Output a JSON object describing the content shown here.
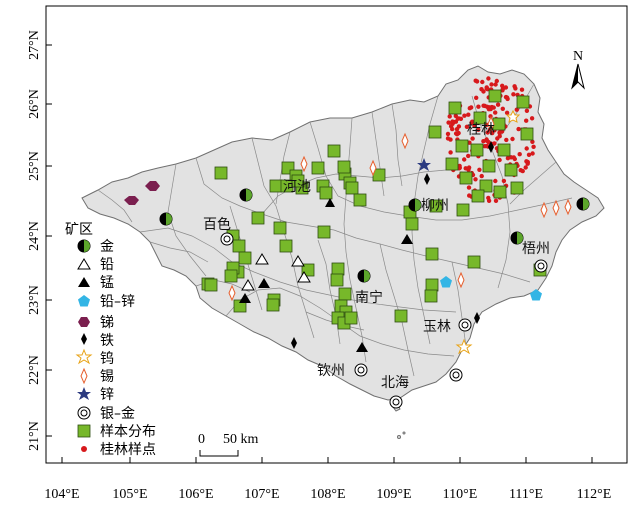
{
  "axes": {
    "x_ticks": [
      "104°E",
      "105°E",
      "106°E",
      "107°E",
      "108°E",
      "109°E",
      "110°E",
      "111°E",
      "112°E"
    ],
    "y_ticks": [
      "27°N",
      "26°N",
      "25°N",
      "24°N",
      "23°N",
      "22°N",
      "21°N"
    ]
  },
  "north_arrow": {
    "label": "N"
  },
  "cities": [
    "桂林",
    "河池",
    "柳州",
    "百色",
    "梧州",
    "南宁",
    "玉林",
    "钦州",
    "北海"
  ],
  "legend": {
    "title": "矿区",
    "items": [
      {
        "label": "金",
        "symbol": "half-circle"
      },
      {
        "label": "铅",
        "symbol": "open-triangle"
      },
      {
        "label": "锰",
        "symbol": "filled-triangle"
      },
      {
        "label": "铅–锌",
        "symbol": "pentagon"
      },
      {
        "label": "锑",
        "symbol": "hexagon"
      },
      {
        "label": "铁",
        "symbol": "filled-diamond"
      },
      {
        "label": "钨",
        "symbol": "open-star"
      },
      {
        "label": "锡",
        "symbol": "open-diamond"
      },
      {
        "label": "锌",
        "symbol": "filled-star"
      },
      {
        "label": "银–金",
        "symbol": "double-circle"
      },
      {
        "label": "样本分布",
        "symbol": "green-square"
      },
      {
        "label": "桂林样点",
        "symbol": "red-dot"
      }
    ]
  },
  "scale_bar": {
    "zero": "0",
    "label": "50 km"
  },
  "colors": {
    "region_fill": "#e2e2e2",
    "border": "#707070",
    "sample_square": "#77b82a",
    "guilin_dot": "#d7191c",
    "lead_zinc": "#33b5e5",
    "antimony": "#7b1f4f",
    "tungsten": "#e8a317",
    "tin": "#e65f2e",
    "zinc": "#2b3a80"
  }
}
